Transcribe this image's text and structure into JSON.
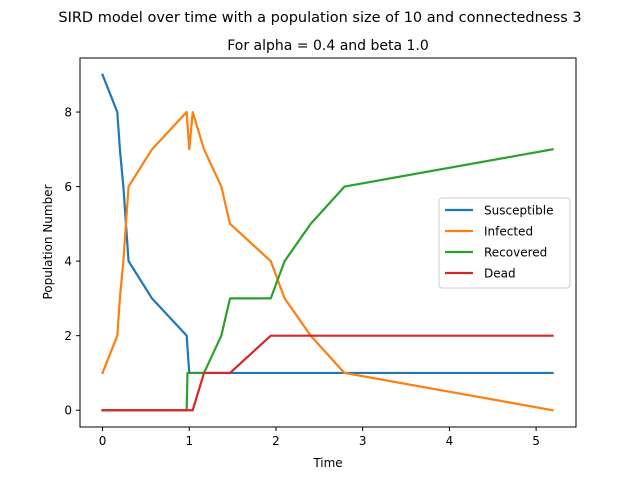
{
  "chart_data": {
    "type": "line",
    "suptitle": "SIRD model over time with a population size of 10 and connectedness 3",
    "title": "For alpha = 0.4 and beta 1.0",
    "xlabel": "Time",
    "ylabel": "Population Number",
    "xlim": [
      -0.26,
      5.46
    ],
    "ylim": [
      -0.45,
      9.45
    ],
    "xticks": [
      0,
      1,
      2,
      3,
      4,
      5
    ],
    "yticks": [
      0,
      2,
      4,
      6,
      8
    ],
    "grid": false,
    "legend_position": "center-right",
    "series": [
      {
        "name": "Susceptible",
        "color": "#1f77b4",
        "points": [
          [
            0,
            9
          ],
          [
            0.17,
            8
          ],
          [
            0.2,
            7
          ],
          [
            0.24,
            6
          ],
          [
            0.27,
            5
          ],
          [
            0.3,
            4
          ],
          [
            0.57,
            3
          ],
          [
            0.97,
            2
          ],
          [
            1.0,
            1
          ],
          [
            1.02,
            1
          ],
          [
            5.19,
            1
          ]
        ]
      },
      {
        "name": "Infected",
        "color": "#ff7f0e",
        "points": [
          [
            0,
            1
          ],
          [
            0.17,
            2
          ],
          [
            0.2,
            3
          ],
          [
            0.24,
            4
          ],
          [
            0.27,
            5
          ],
          [
            0.3,
            6
          ],
          [
            0.57,
            7
          ],
          [
            0.97,
            8
          ],
          [
            1.0,
            7
          ],
          [
            1.04,
            8
          ],
          [
            1.17,
            7
          ],
          [
            1.37,
            6
          ],
          [
            1.47,
            5
          ],
          [
            1.94,
            4
          ],
          [
            2.1,
            3
          ],
          [
            2.4,
            2
          ],
          [
            2.79,
            1
          ],
          [
            5.19,
            0
          ]
        ]
      },
      {
        "name": "Recovered",
        "color": "#2ca02c",
        "points": [
          [
            0,
            0
          ],
          [
            0.97,
            0
          ],
          [
            0.98,
            1
          ],
          [
            1.17,
            1
          ],
          [
            1.37,
            2
          ],
          [
            1.47,
            3
          ],
          [
            1.94,
            3
          ],
          [
            2.1,
            4
          ],
          [
            2.4,
            5
          ],
          [
            2.79,
            6
          ],
          [
            5.19,
            7
          ]
        ]
      },
      {
        "name": "Dead",
        "color": "#d62728",
        "points": [
          [
            0,
            0
          ],
          [
            1.04,
            0
          ],
          [
            1.17,
            1
          ],
          [
            1.47,
            1
          ],
          [
            1.94,
            2
          ],
          [
            5.19,
            2
          ]
        ]
      }
    ]
  }
}
